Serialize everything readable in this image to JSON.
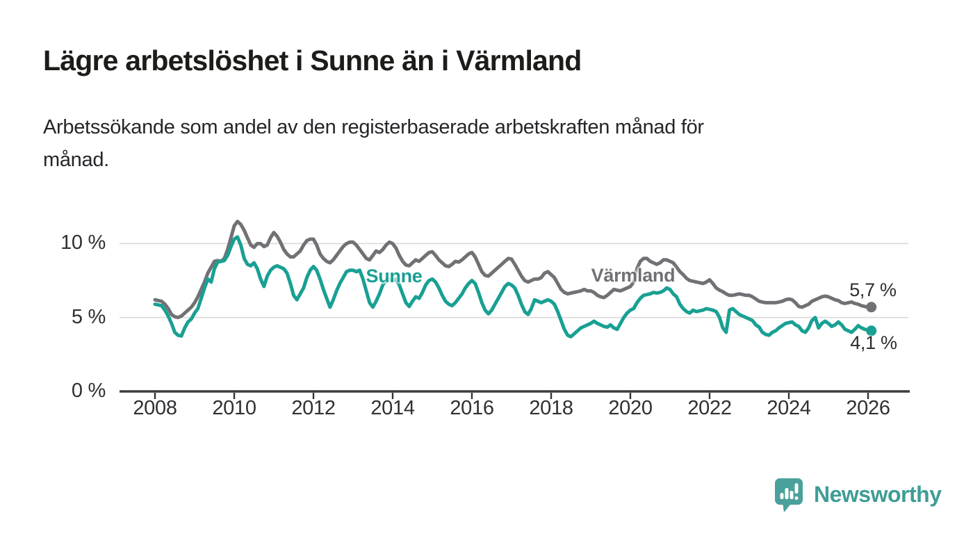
{
  "header": {
    "title": "Lägre arbetslöshet i Sunne än i Värmland",
    "subtitle_lines": [
      "Arbetssökande som andel av den registerbaserade arbetskraften månad för",
      "månad."
    ]
  },
  "footer": {
    "brand": "Newsworthy"
  },
  "colors": {
    "sunne": "#18a093",
    "varmland": "#717175",
    "axis": "#3c3c3c",
    "tick": "#333333",
    "grid": "#d9d9d9",
    "logo": "#4aa09a"
  },
  "chart_data": {
    "type": "line",
    "title": "Lägre arbetslöshet i Sunne än i Värmland",
    "subtitle": "Arbetssökande som andel av den registerbaserade arbetskraften månad för månad.",
    "unit": "%",
    "grid": "horizontal-only",
    "x_axis": {
      "ticks": [
        2008,
        2010,
        2012,
        2014,
        2016,
        2018,
        2020,
        2022,
        2024,
        2026
      ],
      "min": 2008,
      "max": 2027
    },
    "y_axis": {
      "ticks": [
        {
          "label": "0 %",
          "value": 0
        },
        {
          "label": "5 %",
          "value": 5
        },
        {
          "label": "10 %",
          "value": 10
        }
      ],
      "min": 0,
      "max": 11.7
    },
    "start_year": 2008,
    "points_per_year": 12,
    "series_labels": [
      {
        "text": "Sunne"
      },
      {
        "text": "Värmland"
      }
    ],
    "series": [
      {
        "name": "Värmland",
        "color_key": "varmland",
        "end_label": "5,7 %",
        "end_value": 5.7,
        "values": [
          6.2,
          6.15,
          6.1,
          5.9,
          5.6,
          5.2,
          5.05,
          5.0,
          5.1,
          5.3,
          5.5,
          5.7,
          6.0,
          6.4,
          6.9,
          7.4,
          8.0,
          8.4,
          8.8,
          8.85,
          8.8,
          9.0,
          9.6,
          10.4,
          11.2,
          11.5,
          11.3,
          10.9,
          10.4,
          9.9,
          9.75,
          10.0,
          10.0,
          9.8,
          9.9,
          10.4,
          10.75,
          10.5,
          10.1,
          9.6,
          9.3,
          9.1,
          9.1,
          9.3,
          9.5,
          9.9,
          10.2,
          10.3,
          10.3,
          9.9,
          9.3,
          9.0,
          8.8,
          8.7,
          8.9,
          9.2,
          9.5,
          9.8,
          10.0,
          10.1,
          10.1,
          9.9,
          9.6,
          9.3,
          9.0,
          8.9,
          9.2,
          9.5,
          9.4,
          9.6,
          9.9,
          10.1,
          10.0,
          9.7,
          9.2,
          8.8,
          8.55,
          8.5,
          8.7,
          8.9,
          8.8,
          9.0,
          9.2,
          9.4,
          9.45,
          9.2,
          8.9,
          8.7,
          8.5,
          8.45,
          8.6,
          8.8,
          8.75,
          8.9,
          9.1,
          9.3,
          9.4,
          9.1,
          8.6,
          8.1,
          7.85,
          7.8,
          8.0,
          8.2,
          8.4,
          8.6,
          8.8,
          9.0,
          8.95,
          8.6,
          8.2,
          7.8,
          7.5,
          7.4,
          7.5,
          7.6,
          7.6,
          7.7,
          8.0,
          8.1,
          7.9,
          7.7,
          7.3,
          6.9,
          6.7,
          6.6,
          6.65,
          6.7,
          6.75,
          6.8,
          6.9,
          6.8,
          6.8,
          6.7,
          6.5,
          6.4,
          6.35,
          6.5,
          6.7,
          6.9,
          6.85,
          6.8,
          6.9,
          7.0,
          7.1,
          7.4,
          8.3,
          8.8,
          9.0,
          9.0,
          8.8,
          8.7,
          8.6,
          8.7,
          8.9,
          8.9,
          8.8,
          8.7,
          8.4,
          8.1,
          7.9,
          7.65,
          7.5,
          7.45,
          7.4,
          7.35,
          7.3,
          7.4,
          7.55,
          7.3,
          7.0,
          6.85,
          6.75,
          6.6,
          6.5,
          6.5,
          6.55,
          6.6,
          6.55,
          6.5,
          6.5,
          6.4,
          6.25,
          6.1,
          6.05,
          6.0,
          6.0,
          6.0,
          6.0,
          6.05,
          6.1,
          6.2,
          6.25,
          6.2,
          6.0,
          5.75,
          5.7,
          5.8,
          5.9,
          6.1,
          6.2,
          6.3,
          6.4,
          6.45,
          6.4,
          6.3,
          6.2,
          6.15,
          6.0,
          5.95,
          6.0,
          6.05,
          5.95,
          5.9,
          5.8,
          5.75,
          5.7,
          5.7
        ]
      },
      {
        "name": "Sunne",
        "color_key": "sunne",
        "end_label": "4,1 %",
        "end_value": 4.1,
        "values": [
          5.9,
          5.85,
          5.8,
          5.5,
          5.1,
          4.6,
          4.0,
          3.8,
          3.75,
          4.3,
          4.7,
          4.9,
          5.3,
          5.6,
          6.3,
          7.0,
          7.6,
          7.4,
          8.3,
          8.75,
          8.8,
          8.85,
          9.2,
          9.8,
          10.3,
          10.45,
          9.9,
          9.0,
          8.6,
          8.5,
          8.7,
          8.3,
          7.6,
          7.1,
          7.8,
          8.2,
          8.4,
          8.5,
          8.4,
          8.3,
          8.0,
          7.3,
          6.5,
          6.2,
          6.6,
          7.0,
          7.7,
          8.2,
          8.45,
          8.2,
          7.6,
          6.9,
          6.3,
          5.7,
          6.2,
          6.8,
          7.3,
          7.7,
          8.1,
          8.2,
          8.2,
          8.1,
          8.2,
          7.6,
          6.8,
          6.0,
          5.7,
          6.1,
          6.6,
          7.2,
          7.5,
          7.6,
          7.5,
          7.6,
          7.2,
          6.6,
          6.0,
          5.75,
          6.1,
          6.4,
          6.3,
          6.7,
          7.2,
          7.5,
          7.6,
          7.4,
          7.0,
          6.5,
          6.1,
          5.9,
          5.8,
          6.0,
          6.3,
          6.6,
          7.0,
          7.3,
          7.5,
          7.3,
          6.7,
          6.0,
          5.5,
          5.25,
          5.5,
          5.9,
          6.3,
          6.7,
          7.1,
          7.3,
          7.2,
          7.0,
          6.5,
          5.9,
          5.4,
          5.2,
          5.6,
          6.2,
          6.1,
          6.0,
          6.1,
          6.2,
          6.1,
          5.9,
          5.4,
          4.8,
          4.2,
          3.8,
          3.7,
          3.9,
          4.1,
          4.3,
          4.4,
          4.5,
          4.6,
          4.75,
          4.6,
          4.5,
          4.4,
          4.35,
          4.5,
          4.3,
          4.2,
          4.6,
          5.0,
          5.3,
          5.5,
          5.6,
          6.0,
          6.3,
          6.5,
          6.55,
          6.6,
          6.7,
          6.65,
          6.7,
          6.8,
          7.0,
          6.9,
          6.6,
          6.4,
          5.9,
          5.6,
          5.4,
          5.3,
          5.5,
          5.4,
          5.45,
          5.5,
          5.6,
          5.55,
          5.5,
          5.4,
          5.0,
          4.3,
          4.0,
          5.5,
          5.6,
          5.4,
          5.2,
          5.1,
          5.0,
          4.9,
          4.8,
          4.5,
          4.35,
          4.0,
          3.85,
          3.8,
          4.0,
          4.1,
          4.3,
          4.45,
          4.6,
          4.65,
          4.7,
          4.5,
          4.4,
          4.1,
          4.0,
          4.3,
          4.8,
          5.0,
          4.3,
          4.6,
          4.75,
          4.6,
          4.4,
          4.5,
          4.7,
          4.5,
          4.2,
          4.1,
          4.0,
          4.2,
          4.45,
          4.3,
          4.2,
          4.15,
          4.1
        ]
      }
    ]
  }
}
